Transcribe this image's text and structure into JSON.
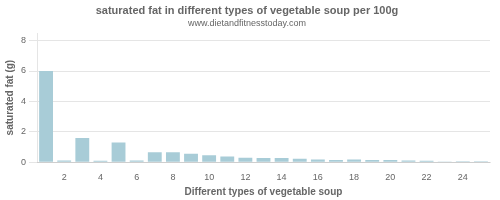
{
  "chart_data": {
    "type": "bar",
    "title": "saturated fat in different types of vegetable soup per 100g",
    "subtitle": "www.dietandfitnesstoday.com",
    "x_label": "Different types of vegetable soup",
    "y_label": "saturated fat (g)",
    "categories": [
      null,
      "2",
      null,
      "4",
      null,
      "6",
      null,
      "8",
      null,
      "10",
      null,
      "12",
      null,
      "14",
      null,
      "16",
      null,
      "18",
      null,
      "20",
      null,
      "22",
      null,
      "24",
      null
    ],
    "values": [
      6.0,
      0.12,
      1.6,
      0.1,
      1.3,
      0.12,
      0.65,
      0.65,
      0.55,
      0.45,
      0.38,
      0.3,
      0.28,
      0.28,
      0.22,
      0.18,
      0.15,
      0.17,
      0.14,
      0.15,
      0.12,
      0.09,
      0.05,
      0.07,
      0.06
    ],
    "color": "#a8ccd7",
    "ylim": [
      0,
      8.5
    ],
    "yticks": [
      0,
      2,
      4,
      6,
      8
    ],
    "grid": true
  }
}
